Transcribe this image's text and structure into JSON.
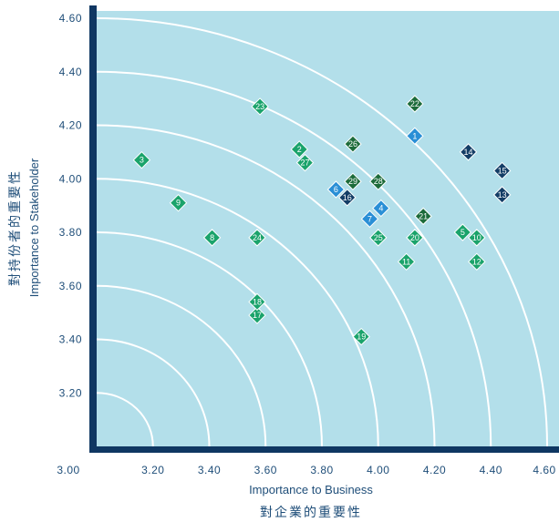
{
  "chart_data": {
    "type": "scatter",
    "xlabel": "Importance to Business",
    "xlabel_cn": "對企業的重要性",
    "ylabel": "Importance to Stakeholder",
    "ylabel_cn": "對持份者的重要性",
    "xlim": [
      3.0,
      4.6
    ],
    "ylim": [
      3.0,
      4.6
    ],
    "x_ticks": [
      "3.00",
      "3.20",
      "3.40",
      "3.60",
      "3.80",
      "4.00",
      "4.20",
      "4.40",
      "4.60"
    ],
    "y_ticks": [
      "3.20",
      "3.40",
      "3.60",
      "3.80",
      "4.00",
      "4.20",
      "4.40",
      "4.60"
    ],
    "x_tick_values": [
      3.0,
      3.2,
      3.4,
      3.6,
      3.8,
      4.0,
      4.2,
      4.4,
      4.6
    ],
    "y_tick_values": [
      3.2,
      3.4,
      3.6,
      3.8,
      4.0,
      4.2,
      4.4,
      4.6
    ],
    "arc_radii": [
      0.2,
      0.4,
      0.6,
      0.8,
      1.0,
      1.2,
      1.4,
      1.6
    ],
    "colors": {
      "background": "#b3dfea",
      "axis": "#0f3762",
      "arc": "#ffffff",
      "green": "#1aa36b",
      "dark_green": "#1c6b3a",
      "blue": "#2a8fd6",
      "navy": "#133d66"
    },
    "points": [
      {
        "id": "1",
        "x": 4.13,
        "y": 4.16,
        "color": "blue"
      },
      {
        "id": "2",
        "x": 3.72,
        "y": 4.11,
        "color": "green"
      },
      {
        "id": "3",
        "x": 3.16,
        "y": 4.07,
        "color": "green"
      },
      {
        "id": "4",
        "x": 4.01,
        "y": 3.89,
        "color": "blue"
      },
      {
        "id": "5",
        "x": 4.3,
        "y": 3.8,
        "color": "green"
      },
      {
        "id": "6",
        "x": 3.85,
        "y": 3.96,
        "color": "blue"
      },
      {
        "id": "7",
        "x": 3.97,
        "y": 3.85,
        "color": "blue"
      },
      {
        "id": "8",
        "x": 3.41,
        "y": 3.78,
        "color": "green"
      },
      {
        "id": "9",
        "x": 3.29,
        "y": 3.91,
        "color": "green"
      },
      {
        "id": "10",
        "x": 4.35,
        "y": 3.78,
        "color": "green"
      },
      {
        "id": "11",
        "x": 4.1,
        "y": 3.69,
        "color": "green"
      },
      {
        "id": "12",
        "x": 4.35,
        "y": 3.69,
        "color": "green"
      },
      {
        "id": "13",
        "x": 4.44,
        "y": 3.94,
        "color": "navy"
      },
      {
        "id": "14",
        "x": 4.32,
        "y": 4.1,
        "color": "navy"
      },
      {
        "id": "15",
        "x": 4.44,
        "y": 4.03,
        "color": "navy"
      },
      {
        "id": "16",
        "x": 3.89,
        "y": 3.93,
        "color": "navy"
      },
      {
        "id": "17",
        "x": 3.57,
        "y": 3.49,
        "color": "green"
      },
      {
        "id": "18",
        "x": 3.57,
        "y": 3.54,
        "color": "green"
      },
      {
        "id": "19",
        "x": 3.94,
        "y": 3.41,
        "color": "green"
      },
      {
        "id": "20",
        "x": 4.13,
        "y": 3.78,
        "color": "green"
      },
      {
        "id": "21",
        "x": 4.16,
        "y": 3.86,
        "color": "dark_green"
      },
      {
        "id": "22",
        "x": 4.13,
        "y": 4.28,
        "color": "dark_green"
      },
      {
        "id": "23",
        "x": 3.58,
        "y": 4.27,
        "color": "green"
      },
      {
        "id": "24",
        "x": 3.57,
        "y": 3.78,
        "color": "green"
      },
      {
        "id": "25",
        "x": 4.0,
        "y": 3.78,
        "color": "green"
      },
      {
        "id": "26",
        "x": 3.91,
        "y": 4.13,
        "color": "dark_green"
      },
      {
        "id": "27",
        "x": 3.74,
        "y": 4.06,
        "color": "green"
      },
      {
        "id": "28",
        "x": 4.0,
        "y": 3.99,
        "color": "dark_green"
      },
      {
        "id": "29",
        "x": 3.91,
        "y": 3.99,
        "color": "dark_green"
      }
    ]
  }
}
